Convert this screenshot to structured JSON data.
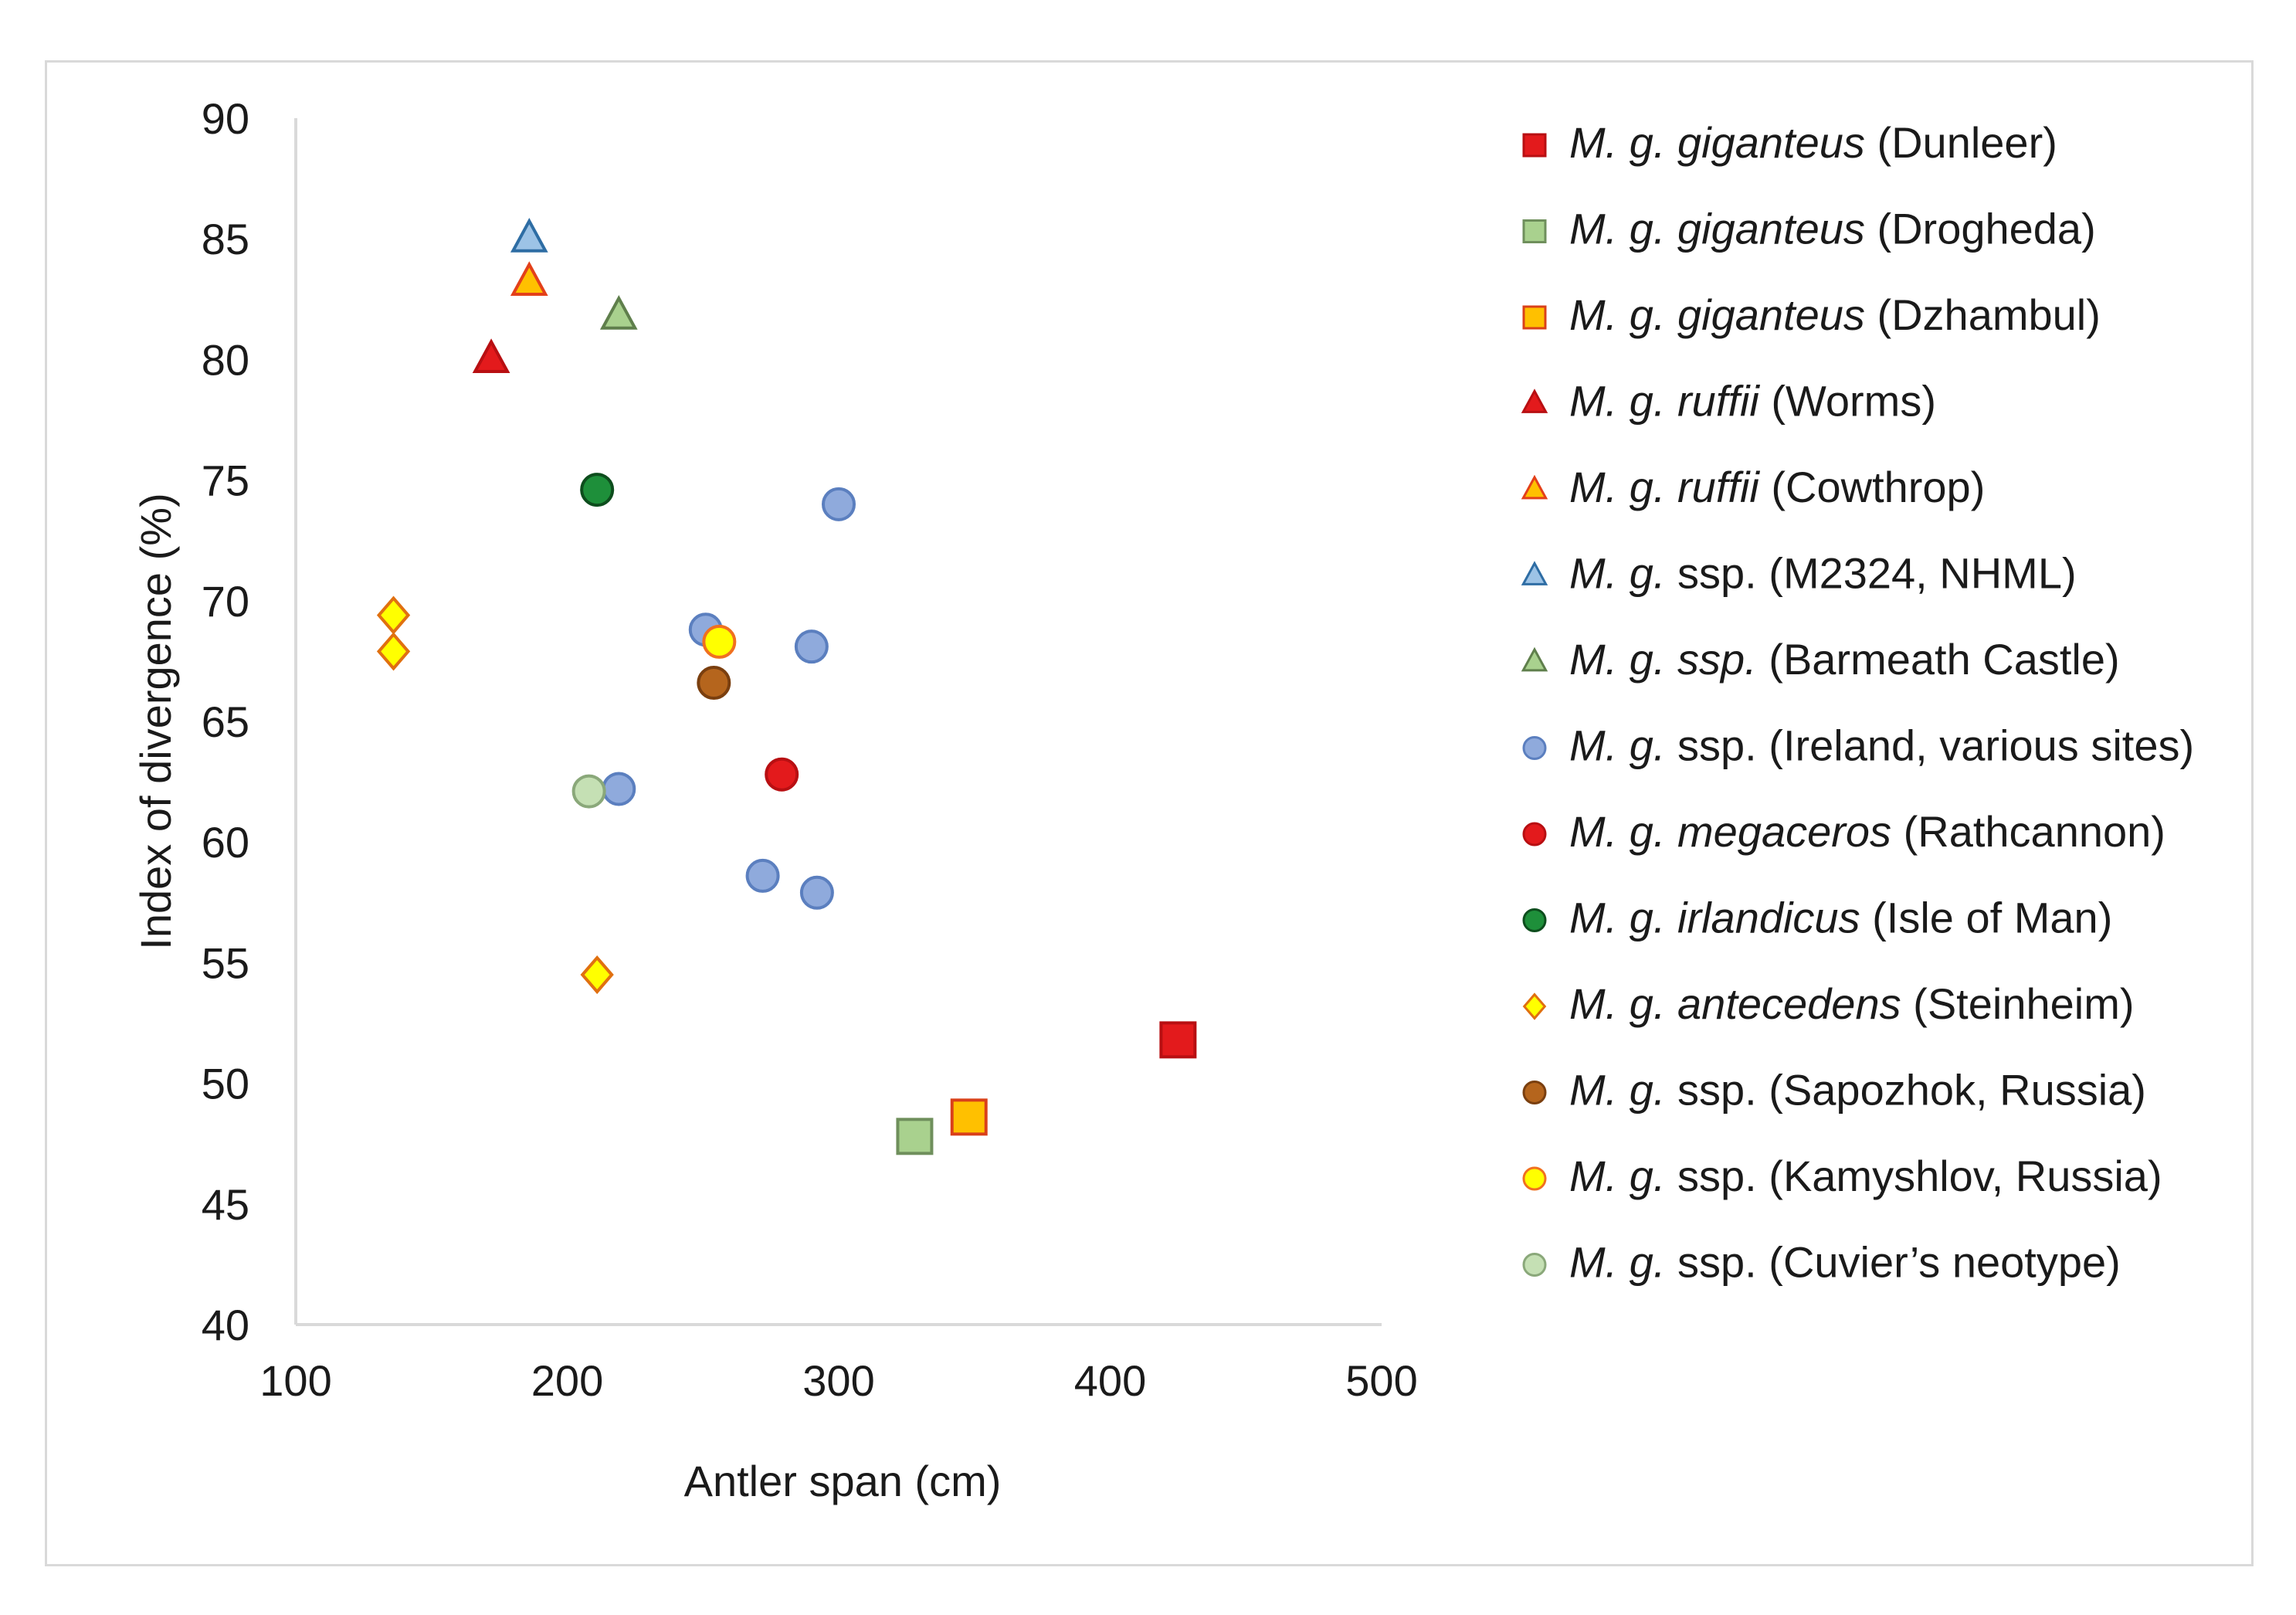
{
  "chart_data": {
    "type": "scatter",
    "title": "",
    "xlabel": "Antler span (cm)",
    "ylabel": "Index of divergence (%)",
    "xlim": [
      100,
      500
    ],
    "ylim": [
      40,
      90
    ],
    "xticks": [
      100,
      200,
      300,
      400,
      500
    ],
    "yticks": [
      40,
      45,
      50,
      55,
      60,
      65,
      70,
      75,
      80,
      85,
      90
    ],
    "grid": false,
    "legend_position": "right",
    "series": [
      {
        "id": "dunleer",
        "name_italic": "M. g. giganteus",
        "name_rest": " (Dunleer)",
        "marker": "square",
        "size": "large",
        "fill": "#e31a1c",
        "stroke": "#b80f12",
        "points": [
          [
            425,
            51.8
          ]
        ]
      },
      {
        "id": "drogheda",
        "name_italic": "M. g. giganteus",
        "name_rest": " (Drogheda)",
        "marker": "square",
        "size": "large",
        "fill": "#a9d18e",
        "stroke": "#6f8f5c",
        "points": [
          [
            328,
            47.8
          ]
        ]
      },
      {
        "id": "dzhambul",
        "name_italic": "M. g. giganteus",
        "name_rest": " (Dzhambul)",
        "marker": "square",
        "size": "large",
        "fill": "#ffc000",
        "stroke": "#d9401a",
        "points": [
          [
            348,
            48.6
          ]
        ]
      },
      {
        "id": "worms",
        "name_italic": "M. g. ruffii",
        "name_rest": " (Worms)",
        "marker": "triangle",
        "size": "normal",
        "fill": "#e31a1c",
        "stroke": "#b80f12",
        "points": [
          [
            172,
            80.0
          ]
        ]
      },
      {
        "id": "cowthrop",
        "name_italic": "M. g. ruffii",
        "name_rest": " (Cowthrop)",
        "marker": "triangle",
        "size": "normal",
        "fill": "#ffc000",
        "stroke": "#e3401a",
        "points": [
          [
            186,
            83.2
          ]
        ]
      },
      {
        "id": "m2324",
        "name_italic": "M. g.",
        "name_rest": " ssp. (M2324, NHML)",
        "marker": "triangle",
        "size": "normal",
        "fill": "#9dc3e6",
        "stroke": "#2e6da4",
        "points": [
          [
            186,
            85.0
          ]
        ]
      },
      {
        "id": "barmeath",
        "name_italic": "M. g. ssp.",
        "name_rest": " (Barmeath Castle)",
        "marker": "triangle",
        "size": "normal",
        "fill": "#a9d18e",
        "stroke": "#5f7f4c",
        "points": [
          [
            219,
            81.8
          ]
        ]
      },
      {
        "id": "ireland",
        "name_italic": "M. g.",
        "name_rest": " ssp. (Ireland, various sites)",
        "marker": "circle",
        "size": "normal",
        "fill": "#8faadc",
        "stroke": "#5b7fbf",
        "points": [
          [
            300,
            74.0
          ],
          [
            251,
            68.8
          ],
          [
            290,
            68.1
          ],
          [
            219,
            62.2
          ],
          [
            272,
            58.6
          ],
          [
            292,
            57.9
          ]
        ]
      },
      {
        "id": "rathcannon",
        "name_italic": "M. g. megaceros",
        "name_rest": " (Rathcannon)",
        "marker": "circle",
        "size": "normal",
        "fill": "#e31a1c",
        "stroke": "#b80f12",
        "points": [
          [
            279,
            62.8
          ]
        ]
      },
      {
        "id": "isle_of_man",
        "name_italic": "M. g. irlandicus",
        "name_rest": " (Isle of Man)",
        "marker": "circle",
        "size": "normal",
        "fill": "#1e8f3a",
        "stroke": "#0d4d1d",
        "points": [
          [
            211,
            74.6
          ]
        ]
      },
      {
        "id": "steinheim",
        "name_italic": "M. g. antecedens",
        "name_rest": " (Steinheim)",
        "marker": "diamond",
        "size": "normal",
        "fill": "#ffff00",
        "stroke": "#e07010",
        "points": [
          [
            136,
            69.4
          ],
          [
            136,
            67.9
          ],
          [
            211,
            54.5
          ]
        ]
      },
      {
        "id": "sapozhok",
        "name_italic": "M. g.",
        "name_rest": " ssp. (Sapozhok, Russia)",
        "marker": "circle",
        "size": "normal",
        "fill": "#b5651d",
        "stroke": "#7a3f0f",
        "points": [
          [
            254,
            66.6
          ]
        ]
      },
      {
        "id": "kamyshlov",
        "name_italic": "M. g.",
        "name_rest": " ssp. (Kamyshlov, Russia)",
        "marker": "circle",
        "size": "normal",
        "fill": "#ffff00",
        "stroke": "#f07020",
        "points": [
          [
            256,
            68.3
          ]
        ]
      },
      {
        "id": "cuvier",
        "name_italic": "M. g.",
        "name_rest": " ssp. (Cuvier’s neotype)",
        "marker": "circle",
        "size": "normal",
        "fill": "#c5e0b4",
        "stroke": "#8aa87a",
        "points": [
          [
            208,
            62.1
          ]
        ]
      }
    ]
  }
}
